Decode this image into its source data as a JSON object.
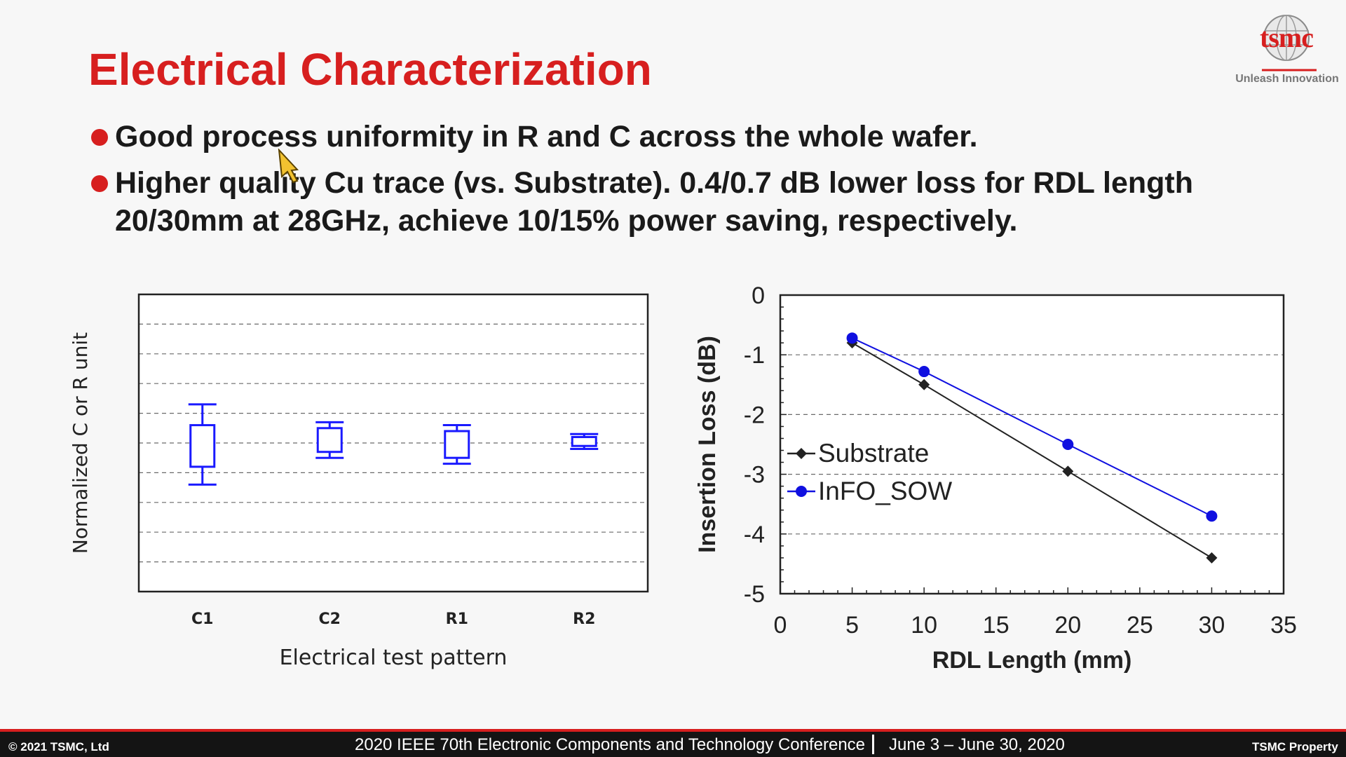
{
  "slide": {
    "title": "Electrical Characterization",
    "logo": {
      "word": "tsmc",
      "tagline": "Unleash Innovation"
    },
    "bullets": [
      {
        "line1": "Good process uniformity in R and C across the whole wafer.",
        "line2": ""
      },
      {
        "line1": "Higher quality Cu trace (vs. Substrate). 0.4/0.7 dB lower loss for RDL length",
        "line2": "20/30mm at 28GHz, achieve 10/15% power saving, respectively."
      }
    ]
  },
  "footer": {
    "copyright": "© 2021 TSMC, Ltd",
    "conference": "2020 IEEE 70th Electronic Components and Technology Conference",
    "dates": "June 3 – June 30, 2020",
    "property": "TSMC Property"
  },
  "colors": {
    "title": "#d71f1f",
    "box": "#1a1aff",
    "infoSow": "#1010e0",
    "substrate": "#222222"
  },
  "chart_data": [
    {
      "type": "box",
      "xlabel": "Electrical test pattern",
      "ylabel": "Normalized C or R unit",
      "categories": [
        "C1",
        "C2",
        "R1",
        "R2"
      ],
      "ylim": [
        0,
        10
      ],
      "grid": true,
      "boxes": [
        {
          "name": "C1",
          "min": 3.6,
          "q1": 4.2,
          "q3": 5.6,
          "max": 6.3
        },
        {
          "name": "C2",
          "min": 4.5,
          "q1": 4.7,
          "q3": 5.5,
          "max": 5.7
        },
        {
          "name": "R1",
          "min": 4.3,
          "q1": 4.5,
          "q3": 5.4,
          "max": 5.6
        },
        {
          "name": "R2",
          "min": 4.8,
          "q1": 4.9,
          "q3": 5.2,
          "max": 5.3
        }
      ]
    },
    {
      "type": "line",
      "xlabel": "RDL Length (mm)",
      "ylabel": "Insertion Loss (dB)",
      "xlim": [
        0,
        35
      ],
      "ylim": [
        -5,
        0
      ],
      "xticks": [
        "0",
        "5",
        "10",
        "15",
        "20",
        "25",
        "30",
        "35"
      ],
      "yticks": [
        "0",
        "-1",
        "-2",
        "-3",
        "-4",
        "-5"
      ],
      "grid": true,
      "legend": "middle-left",
      "series": [
        {
          "name": "Substrate",
          "color": "#222222",
          "marker": "diamond",
          "x": [
            5,
            10,
            20,
            30
          ],
          "y": [
            -0.8,
            -1.5,
            -2.95,
            -4.4
          ]
        },
        {
          "name": "InFO_SOW",
          "color": "#1010e0",
          "marker": "circle",
          "x": [
            5,
            10,
            20,
            30
          ],
          "y": [
            -0.72,
            -1.28,
            -2.5,
            -3.7
          ]
        }
      ]
    }
  ]
}
